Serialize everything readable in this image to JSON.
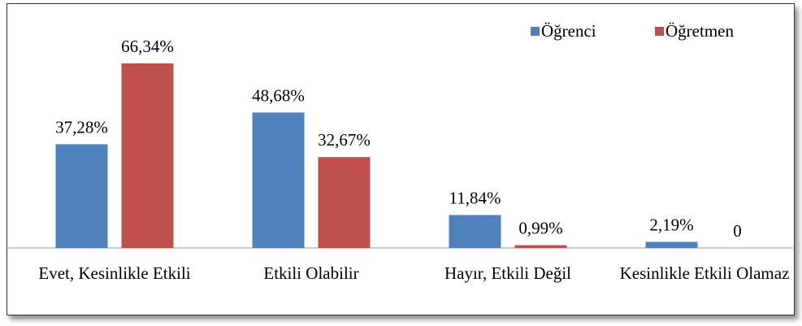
{
  "chart_data": {
    "type": "bar",
    "categories": [
      "Evet, Kesinlikle Etkili",
      "Etkili Olabilir",
      "Hayır, Etkili Değil",
      "Kesinlikle Etkili Olamaz"
    ],
    "series": [
      {
        "name": "Öğrenci",
        "color": "#4f81bd",
        "values": [
          37.28,
          48.68,
          11.84,
          2.19
        ],
        "value_labels": [
          "37,28%",
          "48,68%",
          "11,84%",
          "2,19%"
        ]
      },
      {
        "name": "Öğretmen",
        "color": "#c0504d",
        "values": [
          66.34,
          32.67,
          0.99,
          0
        ],
        "value_labels": [
          "66,34%",
          "32,67%",
          "0,99%",
          "0"
        ]
      }
    ],
    "legend": "top-right"
  }
}
